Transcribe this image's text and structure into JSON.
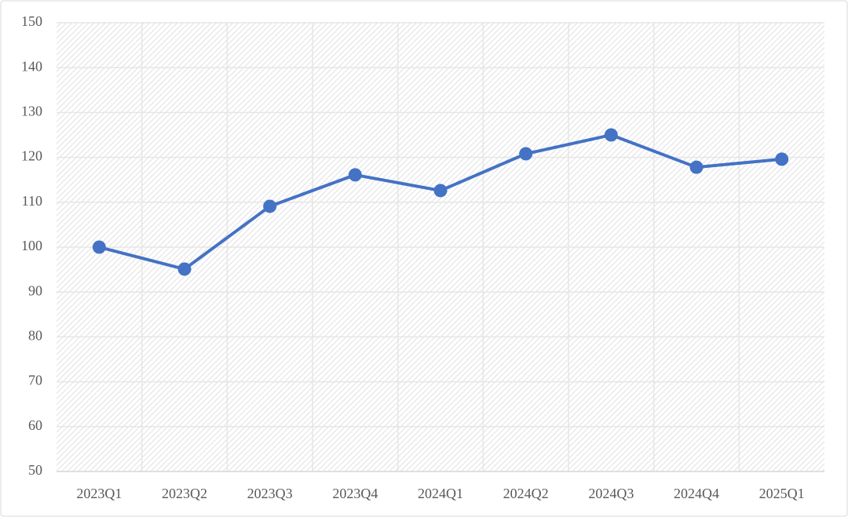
{
  "chart_data": {
    "type": "line",
    "categories": [
      "2023Q1",
      "2023Q2",
      "2023Q3",
      "2023Q4",
      "2024Q1",
      "2024Q2",
      "2024Q3",
      "2024Q4",
      "2025Q1"
    ],
    "values": [
      100,
      95.1,
      109.1,
      116.1,
      112.6,
      120.8,
      125,
      117.8,
      119.6
    ],
    "color": "#4472c4",
    "ylim": [
      50,
      150
    ],
    "yticks": [
      50,
      60,
      70,
      80,
      90,
      100,
      110,
      120,
      130,
      140,
      150
    ],
    "grid": true
  }
}
